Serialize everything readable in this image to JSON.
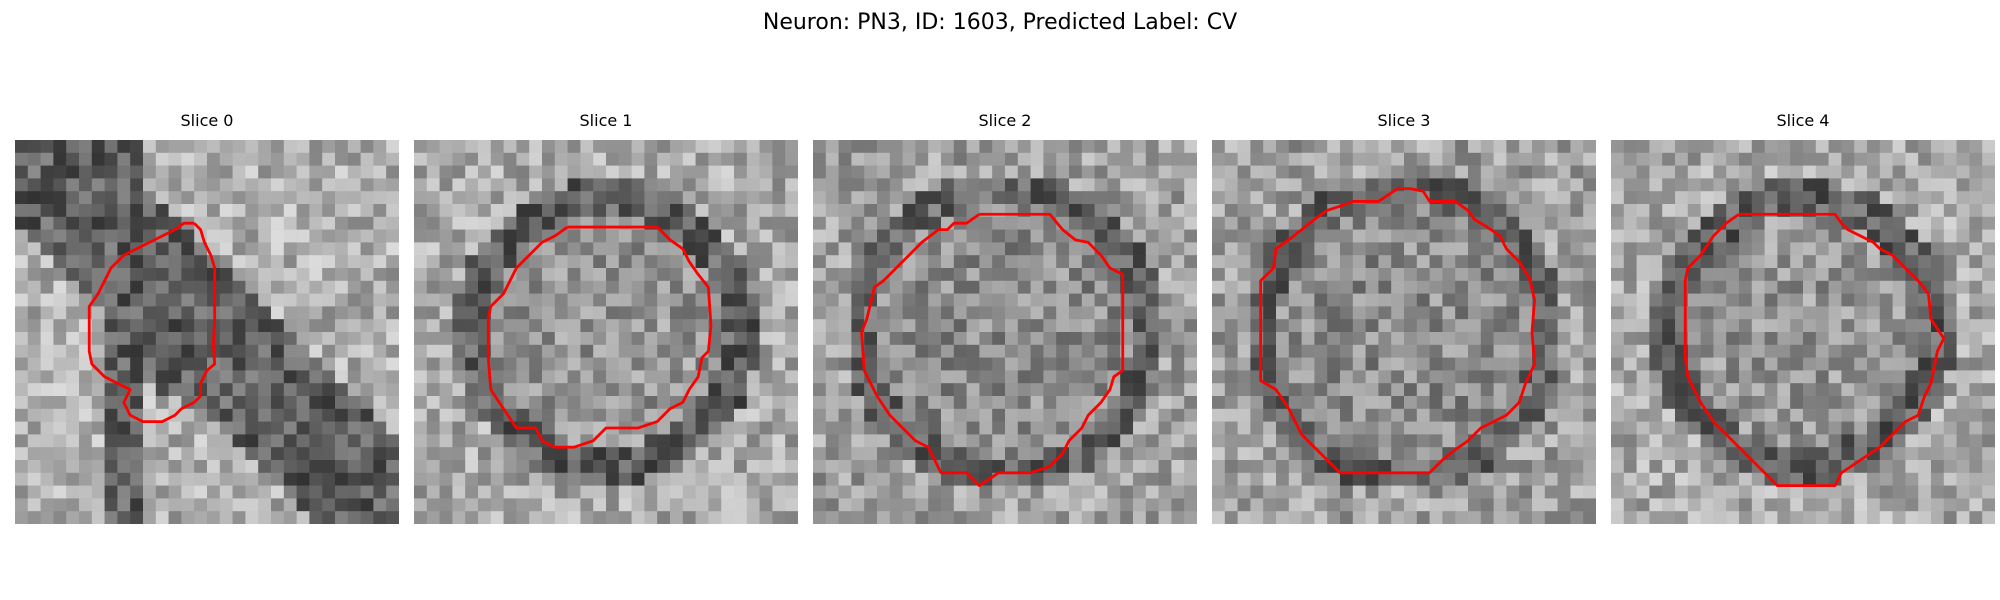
{
  "figure": {
    "title": "Neuron: PN3, ID: 1603, Predicted Label: CV"
  },
  "colors": {
    "contour": "#ff0000",
    "background": "#ffffff"
  },
  "panels": [
    {
      "title": "Slice 0",
      "seed": 11,
      "style": "membrane"
    },
    {
      "title": "Slice 1",
      "seed": 23,
      "style": "ring-bright"
    },
    {
      "title": "Slice 2",
      "seed": 37,
      "style": "noisy"
    },
    {
      "title": "Slice 3",
      "seed": 41,
      "style": "noisy"
    },
    {
      "title": "Slice 4",
      "seed": 53,
      "style": "ring-bright"
    }
  ]
}
